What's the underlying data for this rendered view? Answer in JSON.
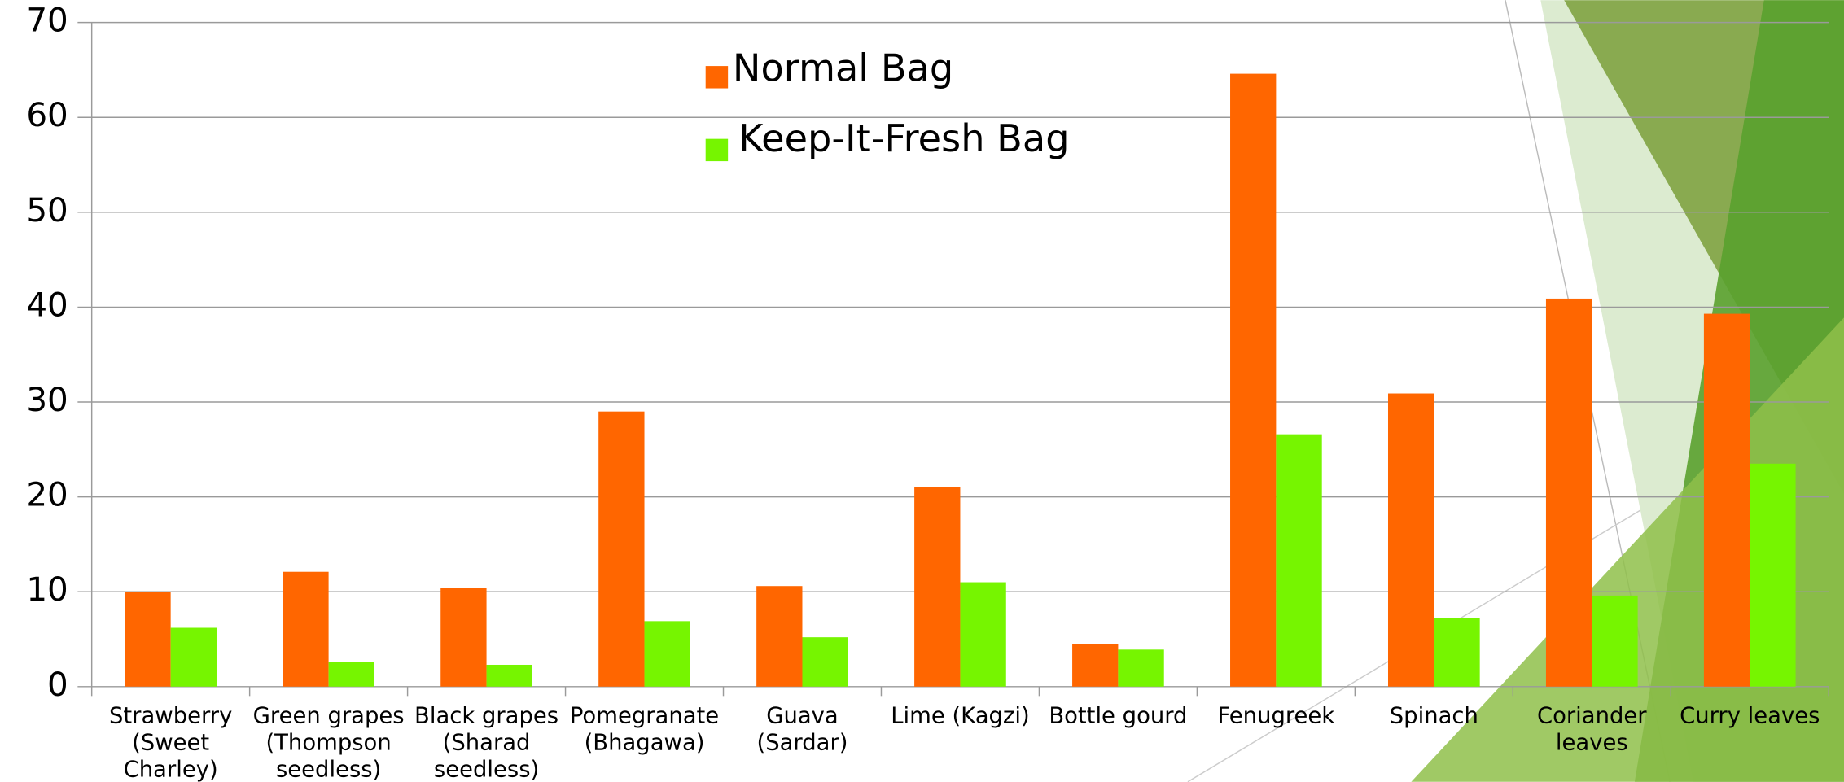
{
  "chart_data": {
    "type": "bar",
    "categories": [
      "Strawberry\n(Sweet\nCharley)",
      "Green grapes\n(Thompson\nseedless)",
      "Black grapes\n(Sharad\nseedless)",
      "Pomegranate\n(Bhagawa)",
      "Guava\n(Sardar)",
      "Lime (Kagzi)",
      "Bottle gourd",
      "Fenugreek",
      "Spinach",
      "Coriander\nleaves",
      "Curry leaves"
    ],
    "series": [
      {
        "name": "Normal Bag",
        "color": "#ff6600",
        "values": [
          10,
          12.1,
          10.4,
          29,
          10.6,
          21,
          4.5,
          64.6,
          30.9,
          40.9,
          39.3
        ]
      },
      {
        "name": "Keep-It-Fresh Bag",
        "color": "#76f500",
        "values": [
          6.2,
          2.6,
          2.3,
          6.9,
          5.2,
          11,
          3.9,
          26.6,
          7.2,
          9.6,
          23.5
        ]
      }
    ],
    "ylim": [
      0,
      70
    ],
    "yticks": [
      0,
      10,
      20,
      30,
      40,
      50,
      60,
      70
    ],
    "grid": true
  }
}
